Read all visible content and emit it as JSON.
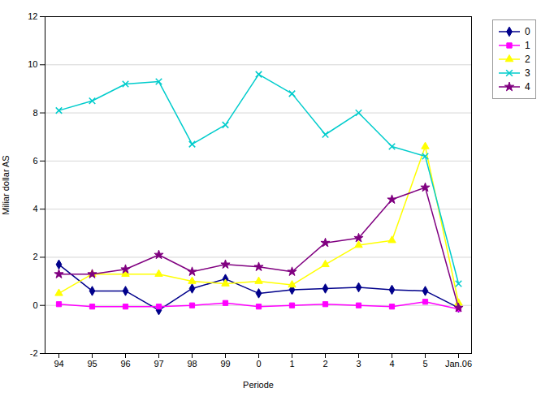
{
  "chart_data": {
    "type": "line",
    "categories": [
      "94",
      "95",
      "96",
      "97",
      "98",
      "99",
      "0",
      "1",
      "2",
      "3",
      "4",
      "5",
      "Jan.06"
    ],
    "series": [
      {
        "name": "0",
        "color": "#00008B",
        "marker": "diamond",
        "values": [
          1.7,
          0.6,
          0.6,
          -0.2,
          0.7,
          1.1,
          0.5,
          0.65,
          0.7,
          0.75,
          0.65,
          0.6,
          -0.1
        ]
      },
      {
        "name": "1",
        "color": "#FF00FF",
        "marker": "square",
        "values": [
          0.05,
          -0.05,
          -0.05,
          -0.05,
          0.0,
          0.1,
          -0.05,
          0.0,
          0.05,
          0.0,
          -0.05,
          0.15,
          -0.15
        ]
      },
      {
        "name": "2",
        "color": "#FFFF00",
        "marker": "triangle",
        "values": [
          0.5,
          1.3,
          1.3,
          1.3,
          1.0,
          0.9,
          1.0,
          0.85,
          1.7,
          2.5,
          2.7,
          6.6,
          0.1
        ]
      },
      {
        "name": "3",
        "color": "#00CCCC",
        "marker": "x",
        "values": [
          8.1,
          8.5,
          9.2,
          9.3,
          6.7,
          7.5,
          9.6,
          8.8,
          7.1,
          8.0,
          6.6,
          6.2,
          0.9
        ]
      },
      {
        "name": "4",
        "color": "#800080",
        "marker": "star",
        "values": [
          1.3,
          1.3,
          1.5,
          2.1,
          1.4,
          1.7,
          1.6,
          1.4,
          2.6,
          2.8,
          4.4,
          4.9,
          -0.1
        ]
      }
    ],
    "xlabel": "Periode",
    "ylabel": "Miliar dollar AS",
    "ylim": [
      -2,
      12
    ],
    "yticks": [
      -2,
      0,
      2,
      4,
      6,
      8,
      10,
      12
    ],
    "grid": true,
    "legend": "right"
  }
}
